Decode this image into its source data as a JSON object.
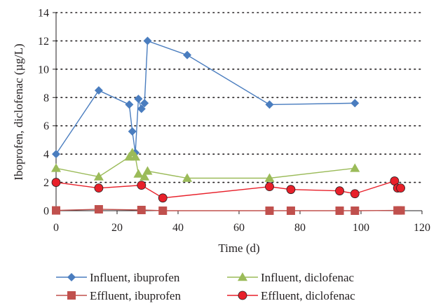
{
  "chart_data": {
    "type": "line",
    "title": "",
    "xlabel": "Time (d)",
    "ylabel": "Iboprofen, diclofenac (µg/L)",
    "xlim": [
      0,
      120
    ],
    "ylim": [
      0,
      14
    ],
    "xticks": [
      0,
      20,
      40,
      60,
      80,
      100,
      120
    ],
    "yticks": [
      0,
      2,
      4,
      6,
      8,
      10,
      12,
      14
    ],
    "xtick_labels": [
      "0",
      "20",
      "40",
      "60",
      "80",
      "100",
      "120"
    ],
    "ytick_labels": [
      "0",
      "2",
      "4",
      "6",
      "8",
      "10",
      "12",
      "14"
    ],
    "grid": "horizontal dotted",
    "legend_position": "bottom",
    "series": [
      {
        "name": "Influent, ibuprofen",
        "marker": "diamond",
        "color": "#4a7dbf",
        "x": [
          0,
          14,
          24,
          25,
          26,
          27,
          28,
          29,
          30,
          43,
          70,
          98
        ],
        "y": [
          4.0,
          8.5,
          7.5,
          5.6,
          4.1,
          7.9,
          7.2,
          7.6,
          12.0,
          11.0,
          7.5,
          7.6
        ]
      },
      {
        "name": "Effluent, ibuprofen",
        "marker": "square",
        "color": "#c0504d",
        "x": [
          0,
          14,
          28,
          35,
          70,
          77,
          93,
          98,
          112,
          113
        ],
        "y": [
          0.02,
          0.1,
          0.05,
          0.0,
          0.0,
          0.0,
          0.0,
          0.0,
          0.02,
          0.02
        ]
      },
      {
        "name": "Influent, diclofenac",
        "marker": "triangle",
        "color": "#9bbb59",
        "x": [
          0,
          14,
          24,
          25,
          26,
          27,
          29,
          30,
          43,
          70,
          98
        ],
        "y": [
          3.0,
          2.4,
          3.8,
          4.1,
          3.8,
          2.6,
          2.4,
          2.8,
          2.3,
          2.3,
          3.0
        ]
      },
      {
        "name": "Effluent, diclofenac",
        "marker": "circle",
        "color": "#e8202a",
        "x": [
          0,
          14,
          28,
          35,
          70,
          77,
          93,
          98,
          111,
          112,
          113
        ],
        "y": [
          2.0,
          1.6,
          1.8,
          0.9,
          1.7,
          1.5,
          1.4,
          1.2,
          2.1,
          1.6,
          1.6
        ]
      }
    ]
  }
}
